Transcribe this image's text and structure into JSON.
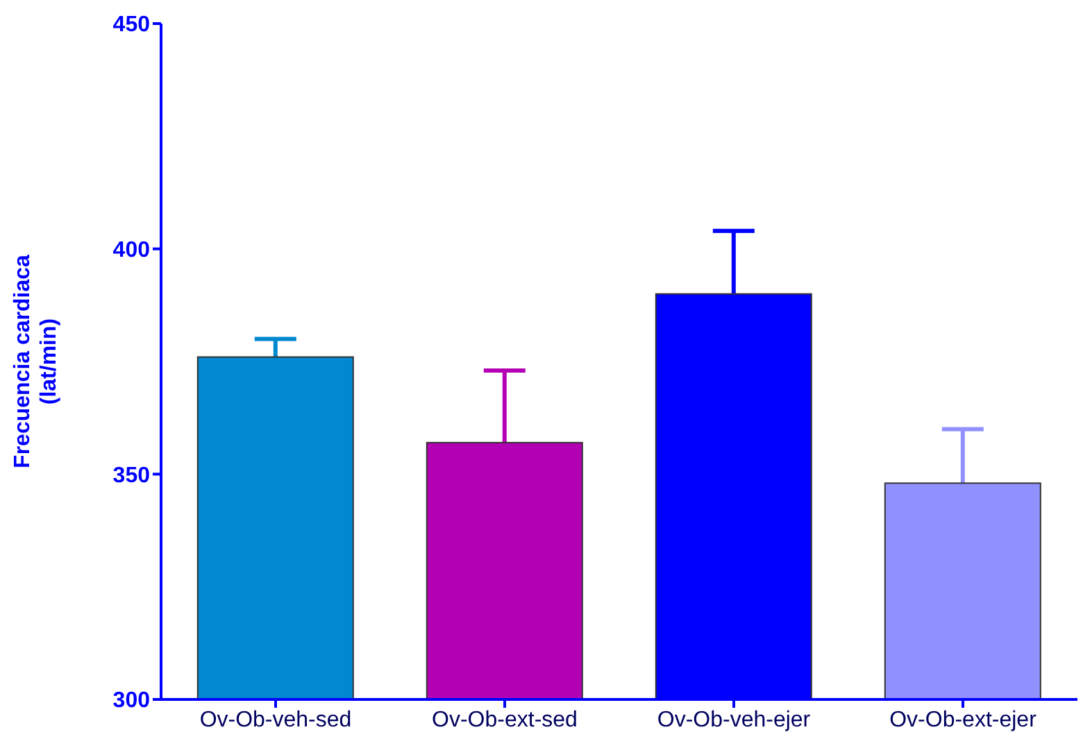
{
  "chart_data": {
    "type": "bar",
    "ylabel": "Frecuencia cardiaca\n(lat/min)",
    "categories": [
      "Ov-Ob-veh-sed",
      "Ov-Ob-ext-sed",
      "Ov-Ob-veh-ejer",
      "Ov-Ob-ext-ejer"
    ],
    "values": [
      376,
      357,
      390,
      348
    ],
    "errors": [
      [
        376,
        380
      ],
      [
        357,
        373
      ],
      [
        390,
        404
      ],
      [
        348,
        360
      ]
    ],
    "colors": [
      "#0088d0",
      "#b400b4",
      "#0000ff",
      "#9090ff"
    ],
    "ylim": [
      300,
      450
    ],
    "yticks": [
      300,
      350,
      400,
      450
    ],
    "grid": false,
    "legend": false
  }
}
